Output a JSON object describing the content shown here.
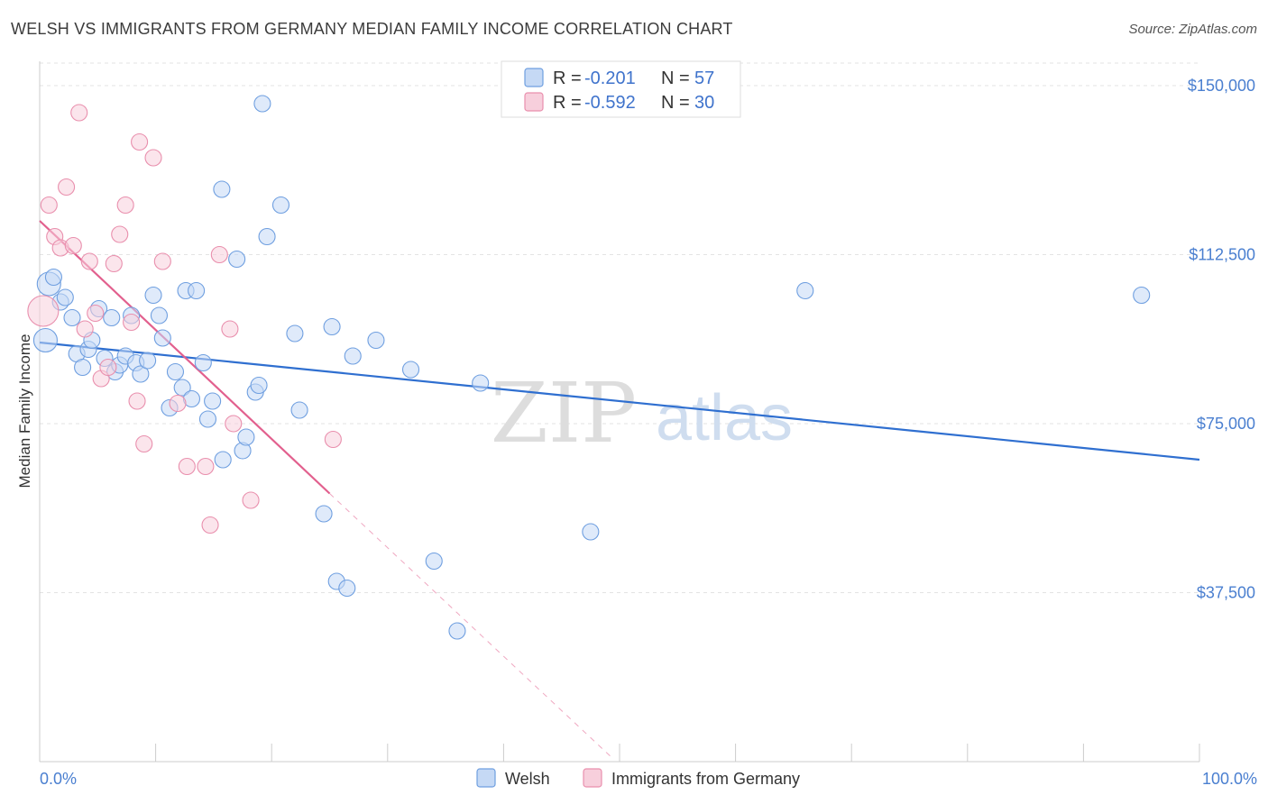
{
  "title": "WELSH VS IMMIGRANTS FROM GERMANY MEDIAN FAMILY INCOME CORRELATION CHART",
  "source": "Source: ZipAtlas.com",
  "watermark": {
    "zip": "ZIP",
    "atlas": "atlas"
  },
  "chart_data": {
    "type": "scatter",
    "ylabel": "Median Family Income",
    "xlabel": "",
    "xlim": [
      0,
      100
    ],
    "ylim": [
      0,
      157000
    ],
    "x_tick_labels": [
      "0.0%",
      "100.0%"
    ],
    "y_ticks": [
      37500,
      75000,
      112500,
      150000
    ],
    "y_tick_labels": [
      "$37,500",
      "$75,000",
      "$112,500",
      "$150,000"
    ],
    "legend": [
      {
        "r_label": "R =",
        "r_value": "-0.201",
        "n_label": "N =",
        "n_value": "57"
      },
      {
        "r_label": "R =",
        "r_value": "-0.592",
        "n_label": "N =",
        "n_value": "30"
      }
    ],
    "series": [
      {
        "name": "Welsh",
        "color": "#6f9fe0",
        "fill": "#c5d9f5",
        "line_color": "#2f6fd0",
        "trend": {
          "x0": 0,
          "y0": 93000,
          "x1": 100,
          "y1": 67000
        },
        "points": [
          {
            "x": 0.5,
            "y": 93500,
            "s": 13
          },
          {
            "x": 0.8,
            "y": 106000,
            "s": 13
          },
          {
            "x": 1.2,
            "y": 107500,
            "s": 9
          },
          {
            "x": 1.8,
            "y": 102000,
            "s": 9
          },
          {
            "x": 2.2,
            "y": 103000,
            "s": 9
          },
          {
            "x": 2.8,
            "y": 98500,
            "s": 9
          },
          {
            "x": 3.2,
            "y": 90500,
            "s": 9
          },
          {
            "x": 3.7,
            "y": 87500,
            "s": 9
          },
          {
            "x": 4.2,
            "y": 91500,
            "s": 9
          },
          {
            "x": 4.5,
            "y": 93500,
            "s": 9
          },
          {
            "x": 5.1,
            "y": 100500,
            "s": 9
          },
          {
            "x": 5.6,
            "y": 89500,
            "s": 9
          },
          {
            "x": 6.2,
            "y": 98500,
            "s": 9
          },
          {
            "x": 6.5,
            "y": 86500,
            "s": 9
          },
          {
            "x": 6.9,
            "y": 88000,
            "s": 9
          },
          {
            "x": 7.4,
            "y": 90000,
            "s": 9
          },
          {
            "x": 7.9,
            "y": 99000,
            "s": 9
          },
          {
            "x": 8.3,
            "y": 88500,
            "s": 9
          },
          {
            "x": 8.7,
            "y": 86000,
            "s": 9
          },
          {
            "x": 9.3,
            "y": 89000,
            "s": 9
          },
          {
            "x": 9.8,
            "y": 103500,
            "s": 9
          },
          {
            "x": 10.3,
            "y": 99000,
            "s": 9
          },
          {
            "x": 10.6,
            "y": 94000,
            "s": 9
          },
          {
            "x": 11.2,
            "y": 78500,
            "s": 9
          },
          {
            "x": 11.7,
            "y": 86500,
            "s": 9
          },
          {
            "x": 12.3,
            "y": 83000,
            "s": 9
          },
          {
            "x": 12.6,
            "y": 104500,
            "s": 9
          },
          {
            "x": 13.1,
            "y": 80500,
            "s": 9
          },
          {
            "x": 13.5,
            "y": 104500,
            "s": 9
          },
          {
            "x": 14.1,
            "y": 88500,
            "s": 9
          },
          {
            "x": 14.5,
            "y": 76000,
            "s": 9
          },
          {
            "x": 14.9,
            "y": 80000,
            "s": 9
          },
          {
            "x": 15.8,
            "y": 67000,
            "s": 9
          },
          {
            "x": 15.7,
            "y": 127000,
            "s": 9
          },
          {
            "x": 17.0,
            "y": 111500,
            "s": 9
          },
          {
            "x": 17.5,
            "y": 69000,
            "s": 9
          },
          {
            "x": 17.8,
            "y": 72000,
            "s": 9
          },
          {
            "x": 18.6,
            "y": 82000,
            "s": 9
          },
          {
            "x": 18.9,
            "y": 83500,
            "s": 9
          },
          {
            "x": 19.2,
            "y": 146000,
            "s": 9
          },
          {
            "x": 19.6,
            "y": 116500,
            "s": 9
          },
          {
            "x": 20.8,
            "y": 123500,
            "s": 9
          },
          {
            "x": 22.0,
            "y": 95000,
            "s": 9
          },
          {
            "x": 22.4,
            "y": 78000,
            "s": 9
          },
          {
            "x": 24.5,
            "y": 55000,
            "s": 9
          },
          {
            "x": 25.2,
            "y": 96500,
            "s": 9
          },
          {
            "x": 25.6,
            "y": 40000,
            "s": 9
          },
          {
            "x": 26.5,
            "y": 38500,
            "s": 9
          },
          {
            "x": 27.0,
            "y": 90000,
            "s": 9
          },
          {
            "x": 29.0,
            "y": 93500,
            "s": 9
          },
          {
            "x": 32.0,
            "y": 87000,
            "s": 9
          },
          {
            "x": 34.0,
            "y": 44500,
            "s": 9
          },
          {
            "x": 36.0,
            "y": 29000,
            "s": 9
          },
          {
            "x": 38.0,
            "y": 84000,
            "s": 9
          },
          {
            "x": 47.5,
            "y": 51000,
            "s": 9
          },
          {
            "x": 66.0,
            "y": 104500,
            "s": 9
          },
          {
            "x": 95.0,
            "y": 103500,
            "s": 9
          }
        ]
      },
      {
        "name": "Immigrants from Germany",
        "color": "#e98fad",
        "fill": "#f7cfdc",
        "line_color": "#e2608e",
        "trend": {
          "x0": 0,
          "y0": 120000,
          "x1": 25,
          "y1": 59500
        },
        "trend_dash": {
          "x0": 25,
          "y0": 59500,
          "x1": 49.5,
          "y1": 500
        },
        "points": [
          {
            "x": 0.3,
            "y": 100000,
            "s": 17
          },
          {
            "x": 0.8,
            "y": 123500,
            "s": 9
          },
          {
            "x": 1.3,
            "y": 116500,
            "s": 9
          },
          {
            "x": 1.8,
            "y": 114000,
            "s": 9
          },
          {
            "x": 2.3,
            "y": 127500,
            "s": 9
          },
          {
            "x": 2.9,
            "y": 114500,
            "s": 9
          },
          {
            "x": 3.4,
            "y": 144000,
            "s": 9
          },
          {
            "x": 3.9,
            "y": 96000,
            "s": 9
          },
          {
            "x": 4.3,
            "y": 111000,
            "s": 9
          },
          {
            "x": 4.8,
            "y": 99500,
            "s": 9
          },
          {
            "x": 5.3,
            "y": 85000,
            "s": 9
          },
          {
            "x": 5.9,
            "y": 87500,
            "s": 9
          },
          {
            "x": 6.4,
            "y": 110500,
            "s": 9
          },
          {
            "x": 6.9,
            "y": 117000,
            "s": 9
          },
          {
            "x": 7.4,
            "y": 123500,
            "s": 9
          },
          {
            "x": 7.9,
            "y": 97500,
            "s": 9
          },
          {
            "x": 8.4,
            "y": 80000,
            "s": 9
          },
          {
            "x": 8.6,
            "y": 137500,
            "s": 9
          },
          {
            "x": 9.0,
            "y": 70500,
            "s": 9
          },
          {
            "x": 9.8,
            "y": 134000,
            "s": 9
          },
          {
            "x": 10.6,
            "y": 111000,
            "s": 9
          },
          {
            "x": 11.9,
            "y": 79500,
            "s": 9
          },
          {
            "x": 12.7,
            "y": 65500,
            "s": 9
          },
          {
            "x": 14.3,
            "y": 65500,
            "s": 9
          },
          {
            "x": 14.7,
            "y": 52500,
            "s": 9
          },
          {
            "x": 15.5,
            "y": 112500,
            "s": 9
          },
          {
            "x": 16.4,
            "y": 96000,
            "s": 9
          },
          {
            "x": 16.7,
            "y": 75000,
            "s": 9
          },
          {
            "x": 18.2,
            "y": 58000,
            "s": 9
          },
          {
            "x": 25.3,
            "y": 71500,
            "s": 9
          }
        ]
      }
    ]
  }
}
